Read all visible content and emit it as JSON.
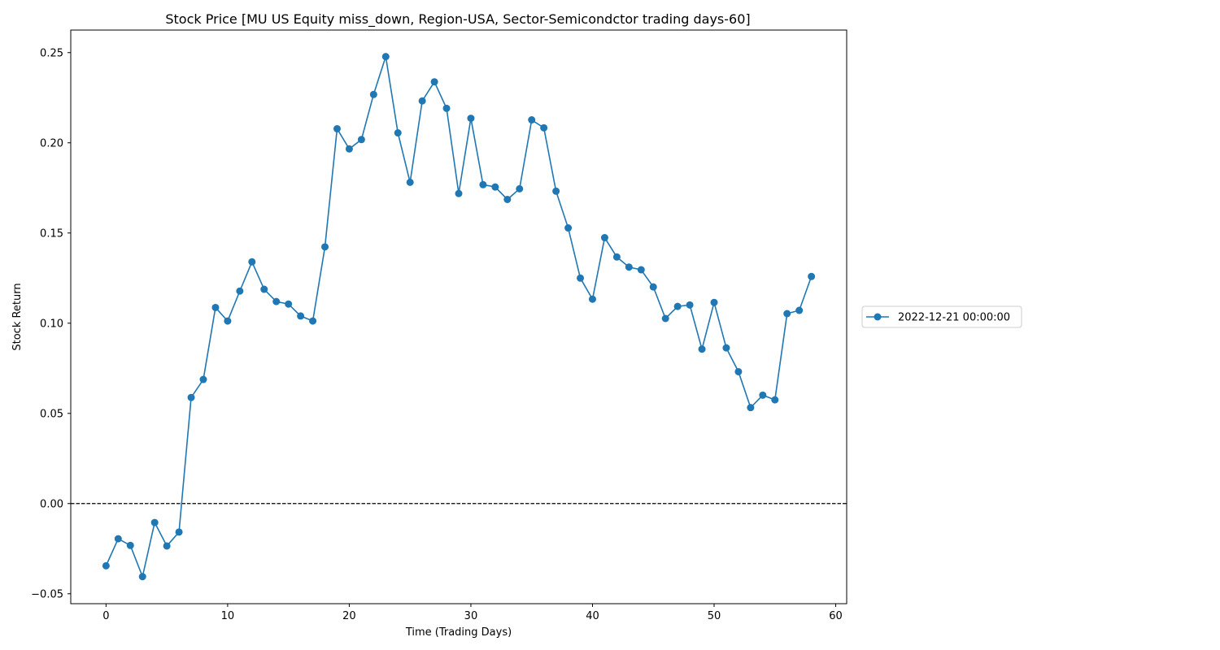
{
  "chart_data": {
    "type": "line",
    "title": "Stock Price [MU US Equity miss_down, Region-USA, Sector-Semicondctor trading days-60]",
    "xlabel": "Time (Trading Days)",
    "ylabel": "Stock Return",
    "xlim": [
      -2.9,
      60.9
    ],
    "ylim": [
      -0.0555,
      0.2625
    ],
    "xticks": [
      0,
      10,
      20,
      30,
      40,
      50,
      60
    ],
    "xtick_labels": [
      "0",
      "10",
      "20",
      "30",
      "40",
      "50",
      "60"
    ],
    "yticks": [
      -0.05,
      0.0,
      0.05,
      0.1,
      0.15,
      0.2,
      0.25
    ],
    "ytick_labels": [
      "−0.05",
      "0.00",
      "0.05",
      "0.10",
      "0.15",
      "0.20",
      "0.25"
    ],
    "grid": false,
    "legend_position": "right",
    "reference_line": {
      "y": 0.0,
      "style": "dashed",
      "color": "#000000"
    },
    "series": [
      {
        "name": "2022-12-21 00:00:00",
        "color": "#1f77b4",
        "marker": "circle",
        "x": [
          0,
          1,
          2,
          3,
          4,
          5,
          6,
          7,
          8,
          9,
          10,
          11,
          12,
          13,
          14,
          15,
          16,
          17,
          18,
          19,
          20,
          21,
          22,
          23,
          24,
          25,
          26,
          27,
          28,
          29,
          30,
          31,
          32,
          33,
          34,
          35,
          36,
          37,
          38,
          39,
          40,
          41,
          42,
          43,
          44,
          45,
          46,
          47,
          48,
          49,
          50,
          51,
          52,
          53,
          54,
          55,
          56,
          57,
          58
        ],
        "values": [
          -0.0345,
          -0.0195,
          -0.0232,
          -0.0405,
          -0.0105,
          -0.0235,
          -0.0158,
          0.0588,
          0.0688,
          0.1087,
          0.1012,
          0.1178,
          0.134,
          0.1188,
          0.112,
          0.1106,
          0.104,
          0.1012,
          0.1423,
          0.2078,
          0.1966,
          0.2018,
          0.2268,
          0.2478,
          0.2055,
          0.1781,
          0.2232,
          0.2338,
          0.2191,
          0.1719,
          0.2136,
          0.1768,
          0.1755,
          0.1686,
          0.1745,
          0.2127,
          0.2083,
          0.1732,
          0.1528,
          0.125,
          0.1133,
          0.1474,
          0.1367,
          0.1311,
          0.1296,
          0.1201,
          0.1026,
          0.1093,
          0.1101,
          0.0856,
          0.1115,
          0.0863,
          0.0731,
          0.0532,
          0.0601,
          0.0575,
          0.1053,
          0.1071,
          0.1259
        ]
      }
    ]
  }
}
